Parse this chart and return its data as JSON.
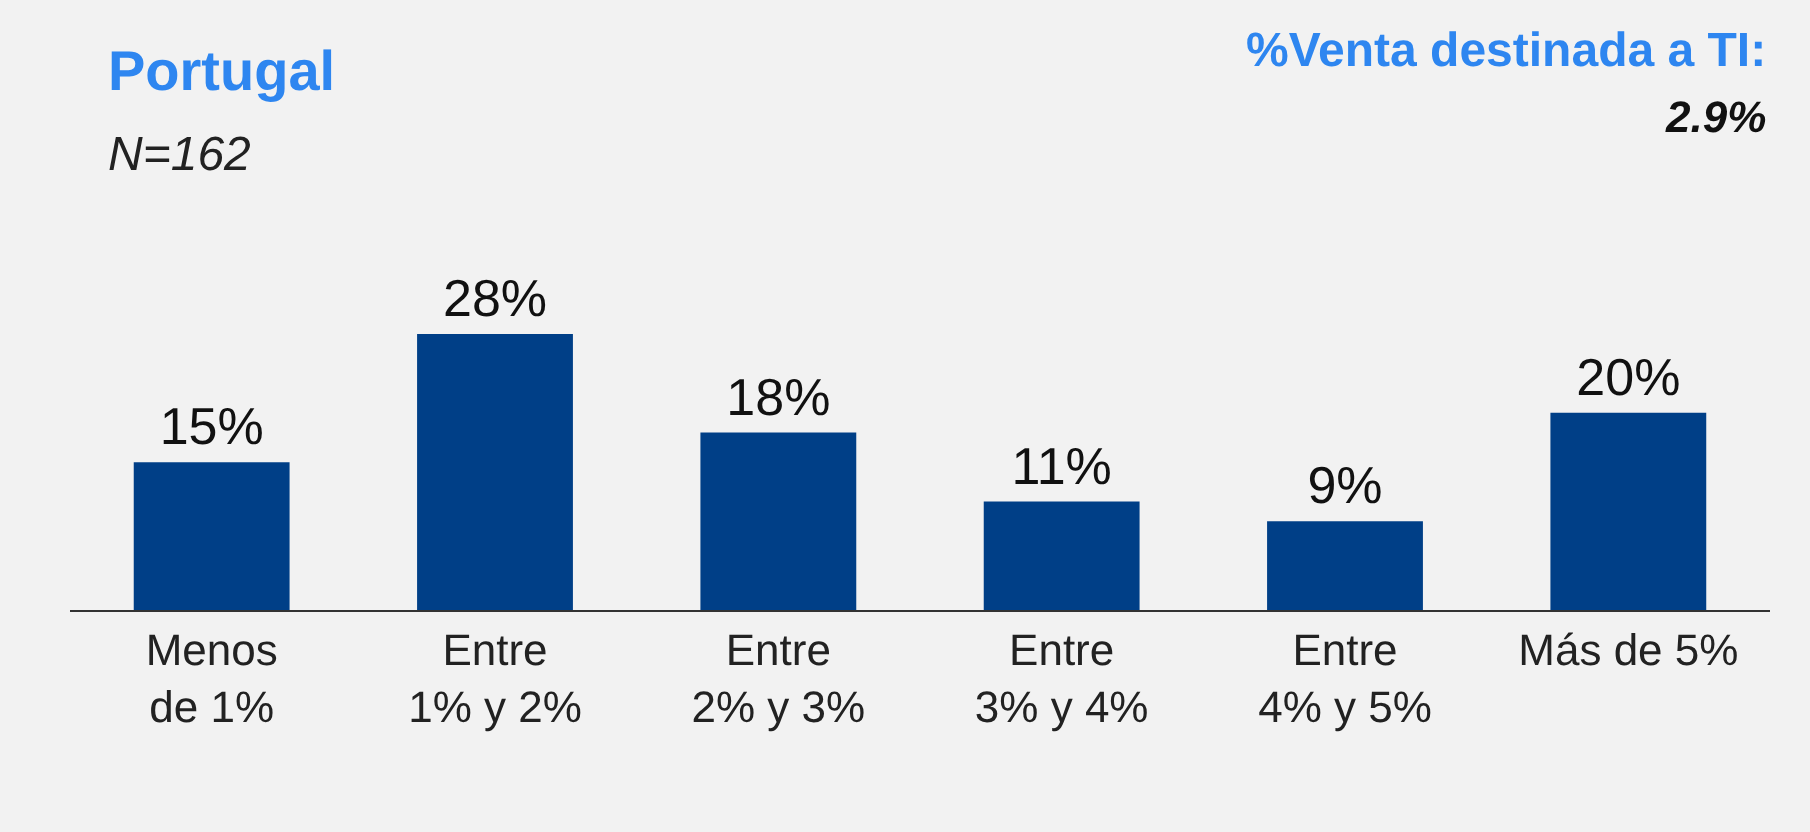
{
  "chart_data": {
    "type": "bar",
    "title": "Portugal",
    "subtitle": "N=162",
    "categories": [
      "Menos\nde 1%",
      "Entre\n1% y 2%",
      "Entre\n2% y 3%",
      "Entre\n3% y 4%",
      "Entre\n4% y 5%",
      "Más de 5%"
    ],
    "values": [
      15,
      28,
      18,
      11,
      9,
      20
    ],
    "color": "#003f87",
    "data_labels": true,
    "value_labels": [
      "15%",
      "28%",
      "18%",
      "11%",
      "9%",
      "20%"
    ],
    "annotations": [
      "%Venta destinada a TI:",
      "2.9%"
    ],
    "grid": false,
    "legend": false
  }
}
